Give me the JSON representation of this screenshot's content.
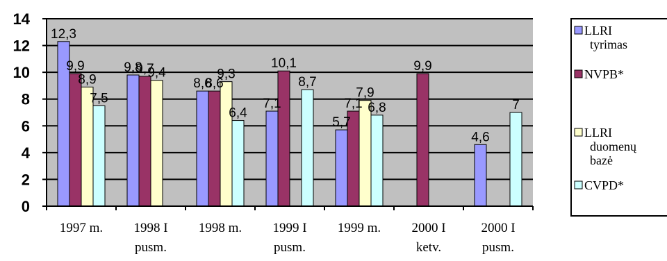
{
  "chart_data": {
    "type": "bar",
    "categories": [
      [
        "1997 m."
      ],
      [
        "1998 I",
        "pusm."
      ],
      [
        "1998 m."
      ],
      [
        "1999 I",
        "pusm."
      ],
      [
        "1999 m."
      ],
      [
        "2000 I",
        "ketv."
      ],
      [
        "2000 I",
        "pusm."
      ]
    ],
    "series": [
      {
        "name": "LLRI tyrimas",
        "legend_lines": [
          "LLRI",
          "tyrimas"
        ],
        "color": "#9999ff",
        "values": [
          12.3,
          9.8,
          8.6,
          7.1,
          5.7,
          null,
          4.6
        ],
        "labels": [
          "12,3",
          "9,8",
          "8,6",
          "7,1",
          "5,7",
          "",
          "4,6"
        ]
      },
      {
        "name": "NVPB*",
        "legend_lines": [
          "NVPB*"
        ],
        "color": "#993366",
        "values": [
          9.9,
          9.7,
          8.6,
          10.1,
          7.1,
          9.9,
          null
        ],
        "labels": [
          "9,9",
          "9,7",
          "8,6",
          "10,1",
          "7,1",
          "9,9",
          ""
        ]
      },
      {
        "name": "LLRI duomenų bazė",
        "legend_lines": [
          "LLRI",
          "duomenų",
          "bazė"
        ],
        "color": "#ffffcc",
        "values": [
          8.9,
          9.4,
          9.3,
          null,
          7.9,
          null,
          null
        ],
        "labels": [
          "8,9",
          "9,4",
          "9,3",
          "",
          "7,9",
          "",
          ""
        ]
      },
      {
        "name": "CVPD*",
        "legend_lines": [
          "CVPD*"
        ],
        "color": "#ccffff",
        "values": [
          7.5,
          null,
          6.4,
          8.7,
          6.8,
          null,
          7.0
        ],
        "labels": [
          "7,5",
          "",
          "6,4",
          "8,7",
          "6,8",
          "",
          "7"
        ]
      }
    ],
    "yticks": [
      "0",
      "2",
      "4",
      "6",
      "8",
      "10",
      "12",
      "14"
    ],
    "ylim": [
      0,
      14
    ],
    "grid": true,
    "plot_background": "#c0c0c0",
    "legend_position": "right"
  }
}
